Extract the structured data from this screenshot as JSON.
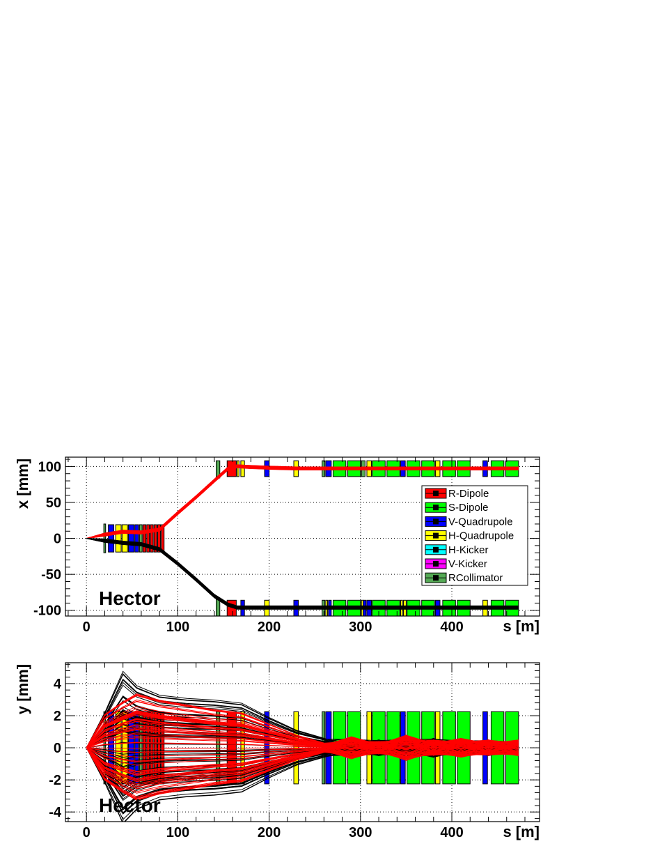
{
  "chart_data": [
    {
      "type": "line",
      "id": "top",
      "xlabel": "s [m]",
      "ylabel": "x [mm]",
      "watermark": "Hector",
      "xlim": [
        -23,
        496
      ],
      "ylim": [
        -108,
        113
      ],
      "xticks": [
        0,
        100,
        200,
        300,
        400
      ],
      "yticks": [
        -100,
        -50,
        0,
        50,
        100
      ],
      "grid": true,
      "legend_position": "right-inside",
      "legend": [
        {
          "label": "R-Dipole",
          "color": "#ff0000"
        },
        {
          "label": "S-Dipole",
          "color": "#00ff00"
        },
        {
          "label": "V-Quadrupole",
          "color": "#0000ff"
        },
        {
          "label": "H-Quadrupole",
          "color": "#ffff00"
        },
        {
          "label": "H-Kicker",
          "color": "#00ffff"
        },
        {
          "label": "V-Kicker",
          "color": "#ff00ff"
        },
        {
          "label": "RCollimator",
          "color": "#55aa55"
        }
      ],
      "elements": [
        {
          "s": 19,
          "w": 2,
          "ylo": -20,
          "yhi": 20,
          "color": "#55aa55"
        },
        {
          "s": 24,
          "w": 6,
          "ylo": -19,
          "yhi": 19,
          "color": "#0000ff"
        },
        {
          "s": 32,
          "w": 6,
          "ylo": -19,
          "yhi": 19,
          "color": "#ffff00"
        },
        {
          "s": 39,
          "w": 6,
          "ylo": -19,
          "yhi": 19,
          "color": "#ffff00"
        },
        {
          "s": 46,
          "w": 6,
          "ylo": -19,
          "yhi": 19,
          "color": "#0000ff"
        },
        {
          "s": 53,
          "w": 4,
          "ylo": -19,
          "yhi": 19,
          "color": "#0000ff"
        },
        {
          "s": 58,
          "w": 3,
          "ylo": -19,
          "yhi": 19,
          "color": "#55aa55"
        },
        {
          "s": 62,
          "w": 3,
          "ylo": -19,
          "yhi": 19,
          "color": "#ff0000"
        },
        {
          "s": 66,
          "w": 3,
          "ylo": -19,
          "yhi": 19,
          "color": "#ff0000"
        },
        {
          "s": 70,
          "w": 3,
          "ylo": -19,
          "yhi": 19,
          "color": "#ff0000"
        },
        {
          "s": 74,
          "w": 3,
          "ylo": -19,
          "yhi": 19,
          "color": "#ff0000"
        },
        {
          "s": 78,
          "w": 3,
          "ylo": -19,
          "yhi": 19,
          "color": "#ff0000"
        },
        {
          "s": 82,
          "w": 3,
          "ylo": -19,
          "yhi": 19,
          "color": "#ff0000"
        },
        {
          "s": 142,
          "w": 4,
          "ylo": 84,
          "yhi": 108,
          "color": "#55aa55"
        },
        {
          "s": 142,
          "w": 4,
          "ylo": -108,
          "yhi": -84,
          "color": "#55aa55"
        },
        {
          "s": 154,
          "w": 10,
          "ylo": 86,
          "yhi": 108,
          "color": "#ff0000"
        },
        {
          "s": 154,
          "w": 10,
          "ylo": -108,
          "yhi": -86,
          "color": "#ff0000"
        },
        {
          "s": 165,
          "w": 2,
          "ylo": 86,
          "yhi": 108,
          "color": "#ffff00"
        },
        {
          "s": 169,
          "w": 4,
          "ylo": 86,
          "yhi": 108,
          "color": "#ffff00"
        },
        {
          "s": 169,
          "w": 4,
          "ylo": -108,
          "yhi": -86,
          "color": "#0000ff"
        },
        {
          "s": 195,
          "w": 5,
          "ylo": 86,
          "yhi": 108,
          "color": "#0000ff"
        },
        {
          "s": 195,
          "w": 5,
          "ylo": -108,
          "yhi": -86,
          "color": "#ffff00"
        },
        {
          "s": 227,
          "w": 5,
          "ylo": 86,
          "yhi": 108,
          "color": "#ffff00"
        },
        {
          "s": 227,
          "w": 5,
          "ylo": -108,
          "yhi": -86,
          "color": "#0000ff"
        },
        {
          "s": 258,
          "w": 3,
          "ylo": 86,
          "yhi": 108,
          "color": "#55aa55"
        },
        {
          "s": 258,
          "w": 3,
          "ylo": -108,
          "yhi": -86,
          "color": "#55aa55"
        },
        {
          "s": 262,
          "w": 6,
          "ylo": 86,
          "yhi": 108,
          "color": "#0000ff"
        },
        {
          "s": 262,
          "w": 2,
          "ylo": -108,
          "yhi": -86,
          "color": "#ffff00"
        },
        {
          "s": 265,
          "w": 3,
          "ylo": -108,
          "yhi": -86,
          "color": "#0000ff"
        },
        {
          "s": 270,
          "w": 14,
          "ylo": 86,
          "yhi": 108,
          "color": "#00ff00"
        },
        {
          "s": 270,
          "w": 14,
          "ylo": -108,
          "yhi": -86,
          "color": "#00ff00"
        },
        {
          "s": 286,
          "w": 14,
          "ylo": 86,
          "yhi": 108,
          "color": "#00ff00"
        },
        {
          "s": 286,
          "w": 14,
          "ylo": -108,
          "yhi": -86,
          "color": "#00ff00"
        },
        {
          "s": 301,
          "w": 4,
          "ylo": 86,
          "yhi": 108,
          "color": "#55aa55"
        },
        {
          "s": 301,
          "w": 2,
          "ylo": -108,
          "yhi": -86,
          "color": "#ffff00"
        },
        {
          "s": 303,
          "w": 3,
          "ylo": -108,
          "yhi": -86,
          "color": "#0000ff"
        },
        {
          "s": 307,
          "w": 5,
          "ylo": 86,
          "yhi": 108,
          "color": "#ffff00"
        },
        {
          "s": 307,
          "w": 5,
          "ylo": -108,
          "yhi": -86,
          "color": "#0000ff"
        },
        {
          "s": 313,
          "w": 14,
          "ylo": 86,
          "yhi": 108,
          "color": "#00ff00"
        },
        {
          "s": 313,
          "w": 14,
          "ylo": -108,
          "yhi": -86,
          "color": "#00ff00"
        },
        {
          "s": 329,
          "w": 14,
          "ylo": 86,
          "yhi": 108,
          "color": "#00ff00"
        },
        {
          "s": 329,
          "w": 14,
          "ylo": -108,
          "yhi": -86,
          "color": "#00ff00"
        },
        {
          "s": 344,
          "w": 5,
          "ylo": 86,
          "yhi": 108,
          "color": "#0000ff"
        },
        {
          "s": 344,
          "w": 2,
          "ylo": -108,
          "yhi": -86,
          "color": "#ffff00"
        },
        {
          "s": 347,
          "w": 3,
          "ylo": -108,
          "yhi": -86,
          "color": "#ffff00"
        },
        {
          "s": 351,
          "w": 14,
          "ylo": 86,
          "yhi": 108,
          "color": "#00ff00"
        },
        {
          "s": 351,
          "w": 14,
          "ylo": -108,
          "yhi": -86,
          "color": "#00ff00"
        },
        {
          "s": 367,
          "w": 14,
          "ylo": 86,
          "yhi": 108,
          "color": "#00ff00"
        },
        {
          "s": 367,
          "w": 14,
          "ylo": -108,
          "yhi": -86,
          "color": "#00ff00"
        },
        {
          "s": 382,
          "w": 5,
          "ylo": 86,
          "yhi": 108,
          "color": "#ffff00"
        },
        {
          "s": 382,
          "w": 5,
          "ylo": -108,
          "yhi": -86,
          "color": "#0000ff"
        },
        {
          "s": 390,
          "w": 14,
          "ylo": 86,
          "yhi": 108,
          "color": "#00ff00"
        },
        {
          "s": 390,
          "w": 14,
          "ylo": -108,
          "yhi": -86,
          "color": "#00ff00"
        },
        {
          "s": 406,
          "w": 14,
          "ylo": 86,
          "yhi": 108,
          "color": "#00ff00"
        },
        {
          "s": 406,
          "w": 14,
          "ylo": -108,
          "yhi": -86,
          "color": "#00ff00"
        },
        {
          "s": 434,
          "w": 5,
          "ylo": 86,
          "yhi": 108,
          "color": "#0000ff"
        },
        {
          "s": 434,
          "w": 5,
          "ylo": -108,
          "yhi": -86,
          "color": "#ffff00"
        },
        {
          "s": 443,
          "w": 14,
          "ylo": 86,
          "yhi": 108,
          "color": "#00ff00"
        },
        {
          "s": 443,
          "w": 14,
          "ylo": -108,
          "yhi": -86,
          "color": "#00ff00"
        },
        {
          "s": 459,
          "w": 14,
          "ylo": 86,
          "yhi": 108,
          "color": "#00ff00"
        },
        {
          "s": 459,
          "w": 14,
          "ylo": -108,
          "yhi": -86,
          "color": "#00ff00"
        }
      ],
      "series": [
        {
          "color": "#ff0000",
          "spread": 2.5,
          "x": [
            0,
            20,
            40,
            60,
            80,
            100,
            120,
            140,
            155,
            165,
            180,
            200,
            230,
            260,
            300,
            350,
            400,
            450,
            473
          ],
          "y": [
            0,
            5,
            9,
            8,
            12,
            35,
            57,
            80,
            97,
            100,
            99,
            98,
            97,
            97,
            97,
            97,
            97,
            97,
            97
          ]
        },
        {
          "color": "#000000",
          "spread": 2.5,
          "x": [
            0,
            20,
            40,
            60,
            80,
            100,
            120,
            140,
            155,
            165,
            180,
            200,
            230,
            260,
            300,
            350,
            400,
            450,
            473
          ],
          "y": [
            0,
            -3,
            -6,
            -8,
            -15,
            -35,
            -57,
            -80,
            -92,
            -96,
            -96,
            -96,
            -96,
            -96,
            -96,
            -96,
            -96,
            -96,
            -96
          ]
        }
      ]
    },
    {
      "type": "line",
      "id": "bottom",
      "xlabel": "s [m]",
      "ylabel": "y [mm]",
      "watermark": "Hector",
      "xlim": [
        -23,
        496
      ],
      "ylim": [
        -4.6,
        5.3
      ],
      "xticks": [
        0,
        100,
        200,
        300,
        400
      ],
      "yticks": [
        -4,
        -2,
        0,
        2,
        4
      ],
      "grid": true,
      "elements": [
        {
          "s": 19,
          "w": 2,
          "ylo": -2.25,
          "yhi": 2.25,
          "color": "#55aa55"
        },
        {
          "s": 24,
          "w": 6,
          "ylo": -2.25,
          "yhi": 2.25,
          "color": "#0000ff"
        },
        {
          "s": 32,
          "w": 6,
          "ylo": -2.25,
          "yhi": 2.25,
          "color": "#ffff00"
        },
        {
          "s": 39,
          "w": 6,
          "ylo": -2.25,
          "yhi": 2.25,
          "color": "#ffff00"
        },
        {
          "s": 46,
          "w": 6,
          "ylo": -2.25,
          "yhi": 2.25,
          "color": "#0000ff"
        },
        {
          "s": 53,
          "w": 4,
          "ylo": -2.25,
          "yhi": 2.25,
          "color": "#0000ff"
        },
        {
          "s": 58,
          "w": 3,
          "ylo": -2.25,
          "yhi": 2.25,
          "color": "#55aa55"
        },
        {
          "s": 62,
          "w": 3,
          "ylo": -2.25,
          "yhi": 2.25,
          "color": "#ff0000"
        },
        {
          "s": 66,
          "w": 3,
          "ylo": -2.25,
          "yhi": 2.25,
          "color": "#ff0000"
        },
        {
          "s": 70,
          "w": 3,
          "ylo": -2.25,
          "yhi": 2.25,
          "color": "#ff0000"
        },
        {
          "s": 74,
          "w": 3,
          "ylo": -2.25,
          "yhi": 2.25,
          "color": "#ff0000"
        },
        {
          "s": 78,
          "w": 3,
          "ylo": -2.25,
          "yhi": 2.25,
          "color": "#ff0000"
        },
        {
          "s": 82,
          "w": 3,
          "ylo": -2.25,
          "yhi": 2.25,
          "color": "#ff0000"
        },
        {
          "s": 142,
          "w": 4,
          "ylo": -2.25,
          "yhi": 2.25,
          "color": "#55aa55"
        },
        {
          "s": 154,
          "w": 10,
          "ylo": -2.25,
          "yhi": 2.25,
          "color": "#ff0000"
        },
        {
          "s": 169,
          "w": 4,
          "ylo": -2.25,
          "yhi": 2.25,
          "color": "#ffff00"
        },
        {
          "s": 195,
          "w": 5,
          "ylo": -2.25,
          "yhi": 2.25,
          "color": "#0000ff"
        },
        {
          "s": 227,
          "w": 5,
          "ylo": -2.25,
          "yhi": 2.25,
          "color": "#ffff00"
        },
        {
          "s": 258,
          "w": 3,
          "ylo": -2.25,
          "yhi": 2.25,
          "color": "#55aa55"
        },
        {
          "s": 262,
          "w": 6,
          "ylo": -2.25,
          "yhi": 2.25,
          "color": "#0000ff"
        },
        {
          "s": 270,
          "w": 14,
          "ylo": -2.25,
          "yhi": 2.25,
          "color": "#00ff00"
        },
        {
          "s": 286,
          "w": 14,
          "ylo": -2.25,
          "yhi": 2.25,
          "color": "#00ff00"
        },
        {
          "s": 307,
          "w": 5,
          "ylo": -2.25,
          "yhi": 2.25,
          "color": "#ffff00"
        },
        {
          "s": 313,
          "w": 14,
          "ylo": -2.25,
          "yhi": 2.25,
          "color": "#00ff00"
        },
        {
          "s": 329,
          "w": 14,
          "ylo": -2.25,
          "yhi": 2.25,
          "color": "#00ff00"
        },
        {
          "s": 344,
          "w": 5,
          "ylo": -2.25,
          "yhi": 2.25,
          "color": "#0000ff"
        },
        {
          "s": 351,
          "w": 14,
          "ylo": -2.25,
          "yhi": 2.25,
          "color": "#00ff00"
        },
        {
          "s": 367,
          "w": 14,
          "ylo": -2.25,
          "yhi": 2.25,
          "color": "#00ff00"
        },
        {
          "s": 382,
          "w": 5,
          "ylo": -2.25,
          "yhi": 2.25,
          "color": "#ffff00"
        },
        {
          "s": 390,
          "w": 14,
          "ylo": -2.25,
          "yhi": 2.25,
          "color": "#00ff00"
        },
        {
          "s": 406,
          "w": 14,
          "ylo": -2.25,
          "yhi": 2.25,
          "color": "#00ff00"
        },
        {
          "s": 434,
          "w": 5,
          "ylo": -2.25,
          "yhi": 2.25,
          "color": "#0000ff"
        },
        {
          "s": 443,
          "w": 14,
          "ylo": -2.25,
          "yhi": 2.25,
          "color": "#00ff00"
        },
        {
          "s": 459,
          "w": 14,
          "ylo": -2.25,
          "yhi": 2.25,
          "color": "#00ff00"
        }
      ],
      "series": [
        {
          "color": "#000000",
          "x": [
            0,
            20,
            40,
            55,
            80,
            110,
            140,
            170,
            200,
            230,
            260,
            290,
            320,
            350,
            380,
            410,
            440,
            473
          ],
          "envelope": [
            0,
            2.2,
            4.8,
            3.9,
            3.3,
            3.1,
            3.0,
            2.8,
            1.9,
            1.1,
            0.6,
            0.6,
            0.5,
            0.6,
            0.6,
            0.5,
            0.5,
            0.4
          ]
        },
        {
          "color": "#ff0000",
          "x": [
            0,
            20,
            40,
            55,
            80,
            110,
            140,
            170,
            200,
            230,
            260,
            290,
            320,
            350,
            380,
            410,
            440,
            473
          ],
          "envelope": [
            0,
            2.1,
            2.9,
            3.4,
            3.0,
            2.7,
            2.4,
            2.2,
            1.5,
            0.8,
            0.3,
            0.7,
            0.4,
            0.8,
            0.5,
            0.6,
            0.5,
            0.5
          ]
        }
      ]
    }
  ]
}
